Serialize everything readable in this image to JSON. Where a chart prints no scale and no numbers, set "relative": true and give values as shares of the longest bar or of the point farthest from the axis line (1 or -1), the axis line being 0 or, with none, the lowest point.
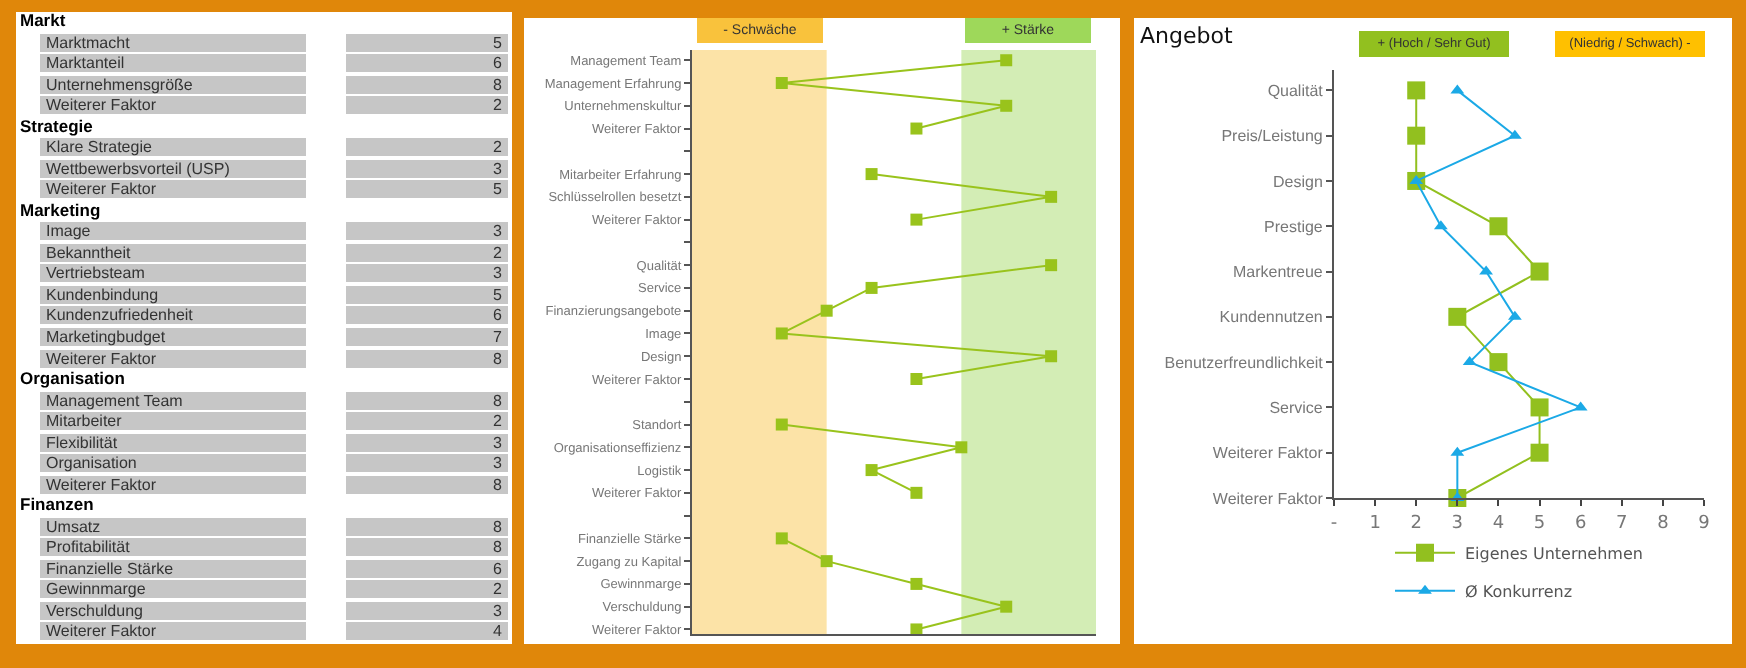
{
  "chart_data": [
    {
      "type": "other",
      "data_labels": true,
      "categories": [
        "Markt",
        "Marktmacht",
        "Marktanteil",
        "Unternehmensgröße",
        "Weiterer Faktor",
        "Strategie",
        "Klare Strategie",
        "Wettbewerbsvorteil (USP)",
        "Weiterer Faktor",
        "Marketing",
        "Image",
        "Bekanntheit",
        "Vertriebsteam",
        "Kundenbindung",
        "Kundenzufriedenheit",
        "Marketingbudget",
        "Weiterer Faktor",
        "Organisation",
        "Management Team",
        "Mitarbeiter",
        "Flexibilität",
        "Organisation",
        "Weiterer Faktor",
        "Finanzen",
        "Umsatz",
        "Profitabilität",
        "Finanzielle Stärke",
        "Gewinnmarge",
        "Verschuldung",
        "Weiterer Faktor"
      ],
      "values": [
        null,
        5,
        6,
        8,
        2,
        null,
        2,
        3,
        5,
        null,
        3,
        2,
        3,
        5,
        6,
        7,
        8,
        null,
        8,
        2,
        3,
        3,
        8,
        null,
        8,
        8,
        6,
        2,
        3,
        4
      ]
    },
    {
      "type": "line",
      "orientation": "horizontal",
      "relative": true,
      "marker": "square",
      "grid": false,
      "legend": false,
      "categories": [
        "Management Team",
        "Management Erfahrung",
        "Unternehmenskultur",
        "Weiterer Faktor",
        null,
        "Mitarbeiter Erfahrung",
        "Schlüsselrollen besetzt",
        "Weiterer Faktor",
        null,
        "Qualität",
        "Service",
        "Finanzierungsangebote",
        "Image",
        "Design",
        "Weiterer Faktor",
        null,
        "Standort",
        "Organisationseffizienz",
        "Logistik",
        "Weiterer Faktor",
        null,
        "Finanzielle Stärke",
        "Zugang zu Kapital",
        "Gewinnmarge",
        "Verschuldung",
        "Weiterer Faktor"
      ],
      "series": [
        {
          "color": "#99c31c",
          "values": [
            0.875,
            0.25,
            0.875,
            0.625,
            null,
            0.5,
            1,
            0.625,
            null,
            1,
            0.5,
            0.375,
            0.25,
            1,
            0.625,
            null,
            0.25,
            0.75,
            0.5,
            0.625,
            null,
            0.25,
            0.375,
            0.625,
            0.875,
            0.625
          ]
        }
      ],
      "bands": [
        {
          "axis": "x",
          "from": 0,
          "to": 0.375,
          "label": "- Schwäche",
          "color": "#f9c23c"
        },
        {
          "axis": "x",
          "from": 0.75,
          "to": 1.125,
          "label": "+ Stärke",
          "color": "#9ed85a"
        }
      ]
    },
    {
      "type": "line",
      "orientation": "horizontal",
      "title": "Angebot",
      "grid": false,
      "legend": "bottom",
      "categories": [
        "Qualität",
        "Preis/Leistung",
        "Design",
        "Prestige",
        "Markentreue",
        "Kundennutzen",
        "Benutzerfreundlichkeit",
        "Service",
        "Weiterer Faktor",
        "Weiterer Faktor"
      ],
      "xlim": [
        0,
        9
      ],
      "xticks": [
        {
          "value": 0,
          "label": "-"
        },
        1,
        2,
        3,
        4,
        5,
        6,
        7,
        8,
        9
      ],
      "annotations": [
        "+ (Hoch / Sehr Gut)",
        "(Niedrig / Schwach) -"
      ],
      "series": [
        {
          "name": "Eigenes Unternehmen",
          "color": "#92c01f",
          "marker": "square",
          "values": [
            2,
            2,
            2,
            4,
            5,
            3,
            4,
            5,
            5,
            3
          ]
        },
        {
          "name": "Ø Konkurrenz",
          "color": "#1ba9e6",
          "marker": "triangle",
          "values": [
            3,
            4.4,
            2,
            2.6,
            3.7,
            4.4,
            3.3,
            6,
            3,
            3
          ]
        }
      ]
    }
  ]
}
